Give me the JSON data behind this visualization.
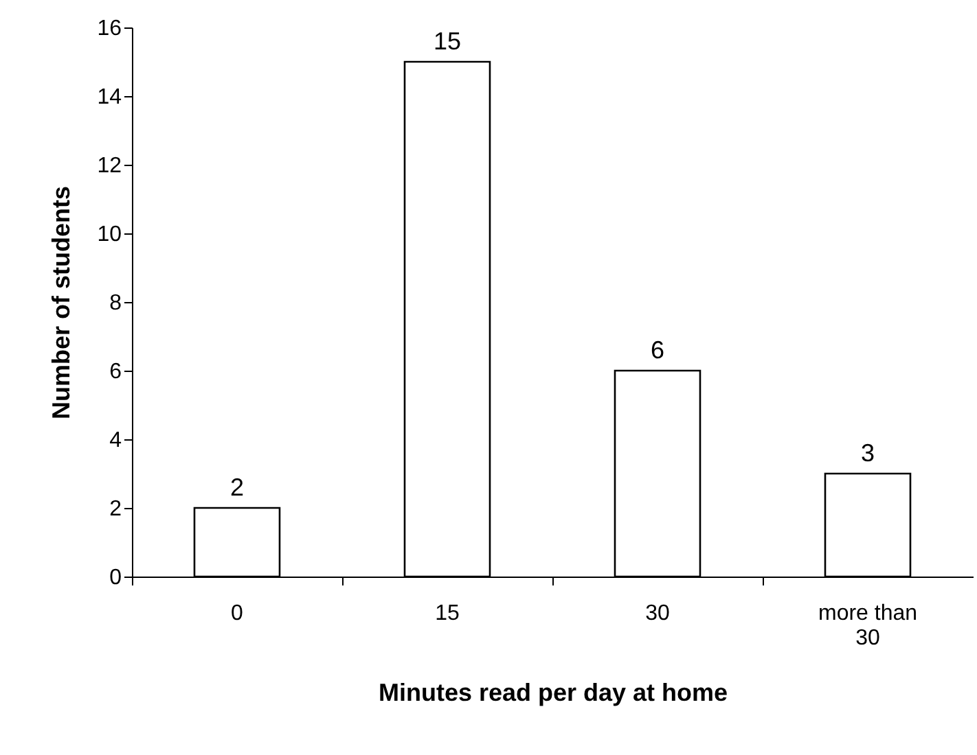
{
  "chart_data": {
    "type": "bar",
    "xlabel": "Minutes read per day at home",
    "ylabel": "Number of students",
    "categories": [
      "0",
      "15",
      "30",
      "more than 30"
    ],
    "values": [
      2,
      15,
      6,
      3
    ],
    "color": "#ffffff",
    "ylim": [
      0,
      16
    ],
    "yticks": [
      0,
      2,
      4,
      6,
      8,
      10,
      12,
      14,
      16
    ],
    "grid": false,
    "data_labels": true
  }
}
